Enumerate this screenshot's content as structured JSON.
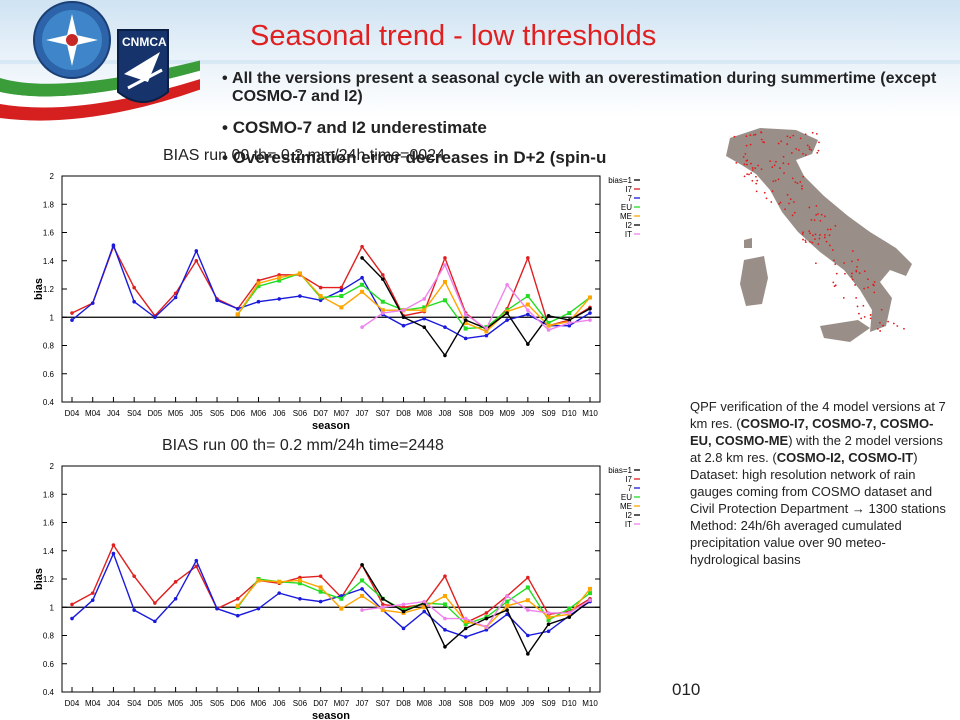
{
  "slide": {
    "title": "Seasonal trend - low thresholds",
    "bullets": [
      "All the versions present a seasonal cycle with an overestimation during summertime (except COSMO-7 and I2)",
      "COSMO-7 and I2 underestimate",
      "Overestimation error decreases in D+2 (spin-u"
    ],
    "logo": {
      "text": "CNMCA",
      "icon": "service-emblem-icon"
    },
    "footer_number": "010",
    "info_box": {
      "part1": "QPF verification of the 4 model versions at 7 km res. (",
      "bold1": "COSMO-I7, COSMO-7, COSMO-EU, COSMO-ME",
      "part2": ") with the 2 model versions at 2.8 km res. (",
      "bold2": "COSMO-I2, COSMO-IT",
      "part3": ")",
      "line_dataset": "Dataset: high resolution network of rain gauges coming from COSMO dataset and Civil Protection Department",
      "arrow": "→",
      "stations": "1300 stations",
      "line_method": "Method: 24h/6h averaged cumulated precipitation value over 90 meteo-hydrological basins"
    },
    "map": {
      "icon": "italy-station-map-icon"
    }
  },
  "colors": {
    "I7": "#e02020",
    "7": "#1a1adc",
    "EU": "#22dd22",
    "ME": "#ffa500",
    "I2": "#000000",
    "IT": "#ee82ee",
    "ref": "#000000"
  },
  "chart_data": [
    {
      "type": "line",
      "title": "BIAS run 00 th= 0.2 mm/24h time=0024",
      "xlabel": "season",
      "ylabel": "bias",
      "ylim": [
        0.4,
        2
      ],
      "yticks": [
        "0.4",
        "0.6",
        "0.8",
        "1",
        "1.2",
        "1.4",
        "1.6",
        "1.8",
        "2"
      ],
      "categories": [
        "D04",
        "M04",
        "J04",
        "S04",
        "D05",
        "M05",
        "J05",
        "S05",
        "D06",
        "M06",
        "J06",
        "S06",
        "D07",
        "M07",
        "J07",
        "S07",
        "D08",
        "M08",
        "J08",
        "S08",
        "D09",
        "M09",
        "J09",
        "S09",
        "D10",
        "M10"
      ],
      "legend": [
        "bias=1",
        "I7",
        "7",
        "EU",
        "ME",
        "I2",
        "IT"
      ],
      "series": [
        {
          "name": "I7",
          "values": [
            1.03,
            1.1,
            1.5,
            1.21,
            1.01,
            1.17,
            1.4,
            1.13,
            1.06,
            1.26,
            1.3,
            1.3,
            1.21,
            1.21,
            1.5,
            1.3,
            1.01,
            1.04,
            1.42,
            1.03,
            0.91,
            1.06,
            1.42,
            0.94,
            0.98,
            1.07
          ]
        },
        {
          "name": "7",
          "values": [
            0.98,
            1.1,
            1.51,
            1.11,
            1.0,
            1.14,
            1.47,
            1.12,
            1.06,
            1.11,
            1.13,
            1.15,
            1.12,
            1.19,
            1.28,
            1.02,
            0.94,
            0.99,
            0.93,
            0.85,
            0.87,
            0.98,
            1.02,
            0.94,
            0.94,
            1.03
          ]
        },
        {
          "name": "EU",
          "values": [
            null,
            null,
            null,
            null,
            null,
            null,
            null,
            null,
            1.02,
            1.22,
            1.26,
            1.31,
            1.14,
            1.15,
            1.23,
            1.11,
            1.05,
            1.07,
            1.12,
            0.92,
            0.93,
            1.05,
            1.15,
            0.96,
            1.03,
            1.14
          ]
        },
        {
          "name": "ME",
          "values": [
            null,
            null,
            null,
            null,
            null,
            null,
            null,
            null,
            1.02,
            1.24,
            1.28,
            1.31,
            1.15,
            1.07,
            1.18,
            1.05,
            1.05,
            1.05,
            1.25,
            0.96,
            0.9,
            1.04,
            1.09,
            0.94,
            0.97,
            1.14
          ]
        },
        {
          "name": "I2",
          "values": [
            null,
            null,
            null,
            null,
            null,
            null,
            null,
            null,
            null,
            null,
            null,
            null,
            null,
            null,
            1.42,
            1.27,
            1.0,
            0.93,
            0.73,
            0.98,
            0.92,
            1.03,
            0.81,
            1.01,
            0.98,
            1.06
          ]
        },
        {
          "name": "IT",
          "values": [
            null,
            null,
            null,
            null,
            null,
            null,
            null,
            null,
            null,
            null,
            null,
            null,
            null,
            null,
            0.93,
            1.03,
            1.05,
            1.13,
            1.37,
            1.02,
            0.92,
            1.23,
            1.05,
            0.91,
            0.96,
            0.98
          ]
        }
      ]
    },
    {
      "type": "line",
      "title": "BIAS run 00 th= 0.2 mm/24h time=2448",
      "xlabel": "season",
      "ylabel": "bias",
      "ylim": [
        0.4,
        2
      ],
      "yticks": [
        "0.4",
        "0.6",
        "0.8",
        "1",
        "1.2",
        "1.4",
        "1.6",
        "1.8",
        "2"
      ],
      "categories": [
        "D04",
        "M04",
        "J04",
        "S04",
        "D05",
        "M05",
        "J05",
        "S05",
        "D06",
        "M06",
        "J06",
        "S06",
        "D07",
        "M07",
        "J07",
        "S07",
        "D08",
        "M08",
        "J08",
        "S08",
        "D09",
        "M09",
        "J09",
        "S09",
        "D10",
        "M10"
      ],
      "legend": [
        "bias=1",
        "I7",
        "7",
        "EU",
        "ME",
        "I2",
        "IT"
      ],
      "series": [
        {
          "name": "I7",
          "values": [
            1.02,
            1.1,
            1.44,
            1.22,
            1.03,
            1.18,
            1.29,
            0.99,
            1.06,
            1.19,
            1.17,
            1.21,
            1.22,
            1.07,
            1.3,
            1.02,
            1.0,
            1.02,
            1.22,
            0.89,
            0.96,
            1.08,
            1.21,
            0.95,
            0.97,
            1.06
          ]
        },
        {
          "name": "7",
          "values": [
            0.92,
            1.05,
            1.38,
            0.98,
            0.9,
            1.06,
            1.33,
            0.99,
            0.94,
            0.99,
            1.1,
            1.06,
            1.04,
            1.08,
            1.13,
            0.98,
            0.85,
            0.97,
            0.84,
            0.79,
            0.84,
            0.95,
            0.8,
            0.83,
            0.94,
            1.04
          ]
        },
        {
          "name": "EU",
          "values": [
            null,
            null,
            null,
            null,
            null,
            null,
            null,
            null,
            1.0,
            1.2,
            1.18,
            1.17,
            1.11,
            1.06,
            1.19,
            1.06,
            0.98,
            1.03,
            1.02,
            0.88,
            0.93,
            1.04,
            1.14,
            0.91,
            0.99,
            1.1
          ]
        },
        {
          "name": "ME",
          "values": [
            null,
            null,
            null,
            null,
            null,
            null,
            null,
            null,
            1.01,
            1.19,
            1.18,
            1.19,
            1.14,
            0.99,
            1.08,
            0.98,
            0.96,
            1.0,
            1.08,
            0.9,
            0.86,
            1.01,
            1.05,
            0.93,
            0.95,
            1.13
          ]
        },
        {
          "name": "I2",
          "values": [
            null,
            null,
            null,
            null,
            null,
            null,
            null,
            null,
            null,
            null,
            null,
            null,
            null,
            null,
            1.3,
            1.06,
            0.97,
            1.03,
            0.72,
            0.85,
            0.92,
            0.98,
            0.67,
            0.88,
            0.93,
            1.05
          ]
        },
        {
          "name": "IT",
          "values": [
            null,
            null,
            null,
            null,
            null,
            null,
            null,
            null,
            null,
            null,
            null,
            null,
            null,
            null,
            0.98,
            1.0,
            1.02,
            1.04,
            0.92,
            0.92,
            0.86,
            1.08,
            0.98,
            0.96,
            0.96,
            1.05
          ]
        }
      ]
    }
  ]
}
